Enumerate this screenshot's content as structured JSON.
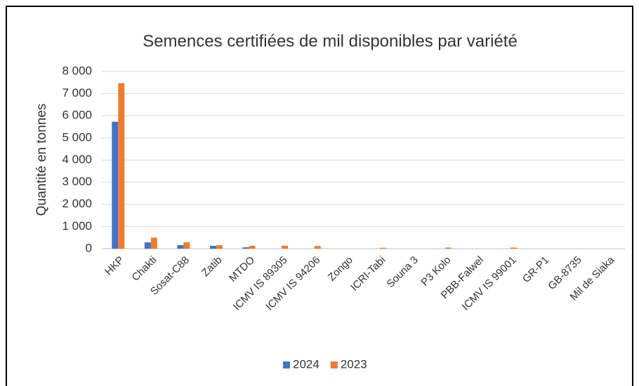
{
  "chart_data": {
    "type": "bar",
    "title": "Semences certifiées de mil disponibles par variété",
    "y_label": "Quantité en tonnes",
    "categories": [
      "HKP",
      "Chakti",
      "Sosat-C88",
      "Zatib",
      "MTDO",
      "ICMV IS 89305",
      "ICMV IS 94206",
      "Zongo",
      "ICRI-Tabi",
      "Souna 3",
      "P3 Kolo",
      "PBB-Falwel",
      "ICMV IS 99001",
      "GR-P1",
      "GB-8735",
      "Mil de Siaka"
    ],
    "series": [
      {
        "name": "2024",
        "color": "#4472c4",
        "values": [
          5730,
          285,
          160,
          130,
          60,
          0,
          0,
          0,
          0,
          0,
          0,
          0,
          0,
          0,
          0,
          0
        ]
      },
      {
        "name": "2023",
        "color": "#ed7d31",
        "values": [
          7470,
          500,
          290,
          160,
          130,
          140,
          120,
          0,
          40,
          0,
          50,
          0,
          50,
          0,
          0,
          0
        ]
      }
    ],
    "ylim": [
      0,
      8000
    ],
    "yticks": [
      0,
      {
        "value": 1000,
        "label": "1 000"
      },
      {
        "value": 2000,
        "label": "2 000"
      },
      {
        "value": 3000,
        "label": "3 000"
      },
      {
        "value": 4000,
        "label": "4 000"
      },
      {
        "value": 5000,
        "label": "5 000"
      },
      {
        "value": 6000,
        "label": "6 000"
      },
      {
        "value": 7000,
        "label": "7 000"
      },
      {
        "value": 8000,
        "label": "8 000"
      }
    ],
    "grid": true,
    "legend": "bottom"
  }
}
